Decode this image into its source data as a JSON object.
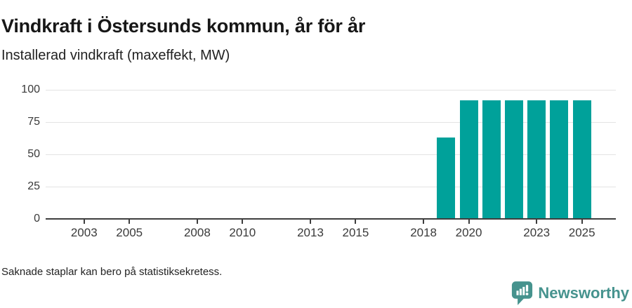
{
  "header": {
    "title": "Vindkraft i Östersunds kommun, år för år",
    "subtitle": "Installerad vindkraft (maxeffekt, MW)"
  },
  "footer": {
    "note": "Saknade staplar kan bero på statistiksekretess.",
    "brand": "Newsworthy"
  },
  "colors": {
    "bar": "#00a19a",
    "brand": "#46938e",
    "axis": "#3e3e3e",
    "grid": "#e3e3e3"
  },
  "chart_data": {
    "type": "bar",
    "title": "Vindkraft i Östersunds kommun, år för år",
    "subtitle": "Installerad vindkraft (maxeffekt, MW)",
    "unit": "MW",
    "ylabel": "Installerad vindkraft (maxeffekt, MW)",
    "xlabel": "",
    "ylim": [
      0,
      100
    ],
    "y_ticks": [
      0,
      25,
      50,
      75,
      100
    ],
    "x_ticks": [
      2003,
      2005,
      2008,
      2010,
      2013,
      2015,
      2018,
      2020,
      2023,
      2025
    ],
    "xlim": [
      2001.3,
      2026.5
    ],
    "grid": true,
    "legend": "none",
    "bars": [
      {
        "year": 2019,
        "value": 63
      },
      {
        "year": 2020,
        "value": 92
      },
      {
        "year": 2021,
        "value": 92
      },
      {
        "year": 2022,
        "value": 92
      },
      {
        "year": 2023,
        "value": 92
      },
      {
        "year": 2024,
        "value": 92
      },
      {
        "year": 2025,
        "value": 92
      }
    ],
    "missing_bars_note": "Saknade staplar kan bero på statistiksekretess."
  }
}
